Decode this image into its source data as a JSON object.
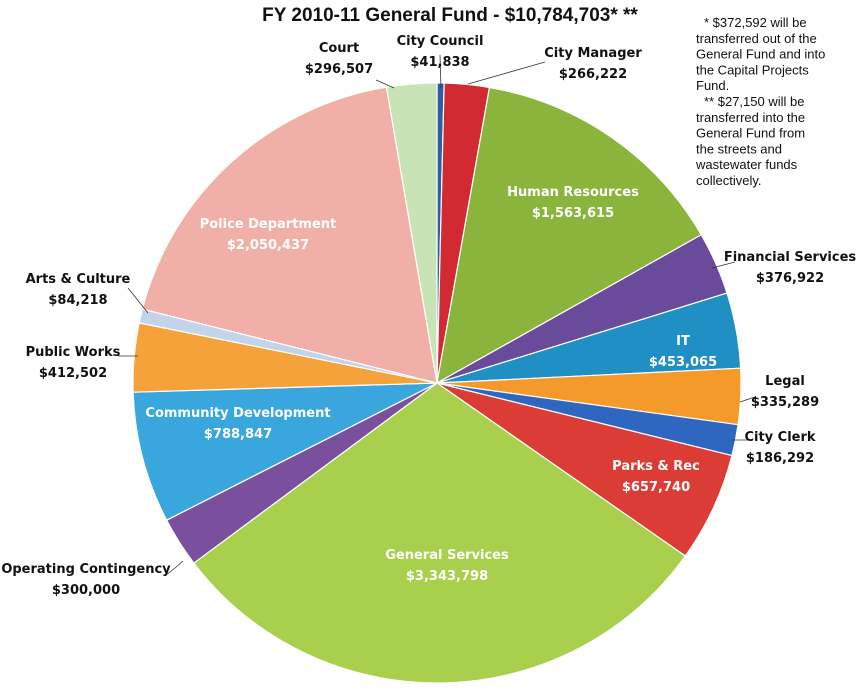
{
  "chart_data": {
    "type": "pie",
    "title": "FY 2010-11 General Fund - $10,784,703* **",
    "total": 10784703,
    "slices": [
      {
        "label": "City Council",
        "value_text": "$41,838",
        "value": 41838,
        "color": "#2e5f9e"
      },
      {
        "label": "City Manager",
        "value_text": "$266,222",
        "value": 266222,
        "color": "#d12a33"
      },
      {
        "label": "Human Resources",
        "value_text": "$1,563,615",
        "value": 1563615,
        "color": "#8ab43c"
      },
      {
        "label": "Financial Services",
        "value_text": "$376,922",
        "value": 376922,
        "color": "#6a4a9a"
      },
      {
        "label": "IT",
        "value_text": "$453,065",
        "value": 453065,
        "color": "#1f8fc4"
      },
      {
        "label": "Legal",
        "value_text": "$335,289",
        "value": 335289,
        "color": "#f39a2b"
      },
      {
        "label": "City Clerk",
        "value_text": "$186,292",
        "value": 186292,
        "color": "#2f66bf"
      },
      {
        "label": "Parks & Rec",
        "value_text": "$657,740",
        "value": 657740,
        "color": "#dc3c36"
      },
      {
        "label": "General Services",
        "value_text": "$3,343,798",
        "value": 3343798,
        "color": "#a8d04c"
      },
      {
        "label": "Operating Contingency",
        "value_text": "$300,000",
        "value": 300000,
        "color": "#7a4f9e"
      },
      {
        "label": "Community Development",
        "value_text": "$788,847",
        "value": 788847,
        "color": "#3aa6de"
      },
      {
        "label": "Public Works",
        "value_text": "$412,502",
        "value": 412502,
        "color": "#f6a23a"
      },
      {
        "label": "Arts & Culture",
        "value_text": "$84,218",
        "value": 84218,
        "color": "#c3d3ea"
      },
      {
        "label": "Police Department",
        "value_text": "$2,050,437",
        "value": 2050437,
        "color": "#f0b0a8"
      },
      {
        "label": "Court",
        "value_text": "$296,507",
        "value": 296507,
        "color": "#c8e4b6"
      }
    ],
    "notes": [
      "* $372,592 will be",
      "transferred out of the",
      "General Fund and into",
      "the Capital Projects",
      "Fund.",
      "** $27,150 will be",
      "transferred into the",
      "General Fund from",
      "the streets and",
      "wastewater funds",
      "collectively."
    ]
  }
}
